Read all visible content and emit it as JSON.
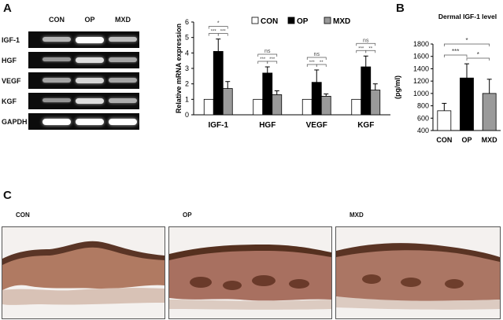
{
  "panels": {
    "a": "A",
    "b": "B",
    "c": "C"
  },
  "gel": {
    "lanes": [
      "CON",
      "OP",
      "MXD"
    ],
    "genes": [
      "IGF-1",
      "HGF",
      "VEGF",
      "KGF",
      "GAPDH"
    ],
    "intensity": [
      [
        0.55,
        1.0,
        0.6
      ],
      [
        0.35,
        0.8,
        0.45
      ],
      [
        0.45,
        0.75,
        0.45
      ],
      [
        0.35,
        0.8,
        0.5
      ],
      [
        1.0,
        1.0,
        1.0
      ]
    ]
  },
  "chart_data": [
    {
      "type": "bar",
      "categories": [
        "IGF-1",
        "HGF",
        "VEGF",
        "KGF"
      ],
      "series": [
        {
          "name": "CON",
          "values": [
            1.0,
            1.0,
            1.0,
            1.0
          ],
          "errors": [
            0,
            0,
            0,
            0
          ],
          "color": "#ffffff"
        },
        {
          "name": "OP",
          "values": [
            4.1,
            2.7,
            2.1,
            3.1
          ],
          "errors": [
            0.8,
            0.4,
            0.8,
            0.7
          ],
          "color": "#000000"
        },
        {
          "name": "MXD",
          "values": [
            1.7,
            1.3,
            1.2,
            1.6
          ],
          "errors": [
            0.45,
            0.25,
            0.15,
            0.4
          ],
          "color": "#9a9a9a"
        }
      ],
      "ylabel": "Relative mRNA expression",
      "ylim": [
        0,
        6
      ],
      "yticks": [
        "0",
        "1",
        "2",
        "3",
        "4",
        "5",
        "6"
      ],
      "legend": "top",
      "significance": [
        {
          "category": "IGF-1",
          "top": "*",
          "left": "***",
          "right": "***"
        },
        {
          "category": "HGF",
          "top": "ns",
          "left": "***",
          "right": "***"
        },
        {
          "category": "VEGF",
          "top": "ns",
          "left": "***",
          "right": "**"
        },
        {
          "category": "KGF",
          "top": "ns",
          "left": "***",
          "right": "**"
        }
      ]
    },
    {
      "type": "bar",
      "title": "Dermal IGF-1 level",
      "categories": [
        "CON",
        "OP",
        "MXD"
      ],
      "values": [
        720,
        1250,
        1000
      ],
      "errors": [
        120,
        230,
        230
      ],
      "colors": [
        "#ffffff",
        "#000000",
        "#9a9a9a"
      ],
      "ylabel": "(pg/ml)",
      "ylim": [
        400,
        1800
      ],
      "yticks": [
        "400",
        "600",
        "800",
        "1000",
        "1200",
        "1400",
        "1600",
        "1800"
      ],
      "significance": [
        {
          "pair": "CON-OP",
          "label": "***"
        },
        {
          "pair": "OP-MXD",
          "label": "*"
        },
        {
          "pair": "CON-MXD",
          "label": "*"
        }
      ]
    }
  ],
  "histology": {
    "labels": [
      "CON",
      "OP",
      "MXD"
    ]
  }
}
